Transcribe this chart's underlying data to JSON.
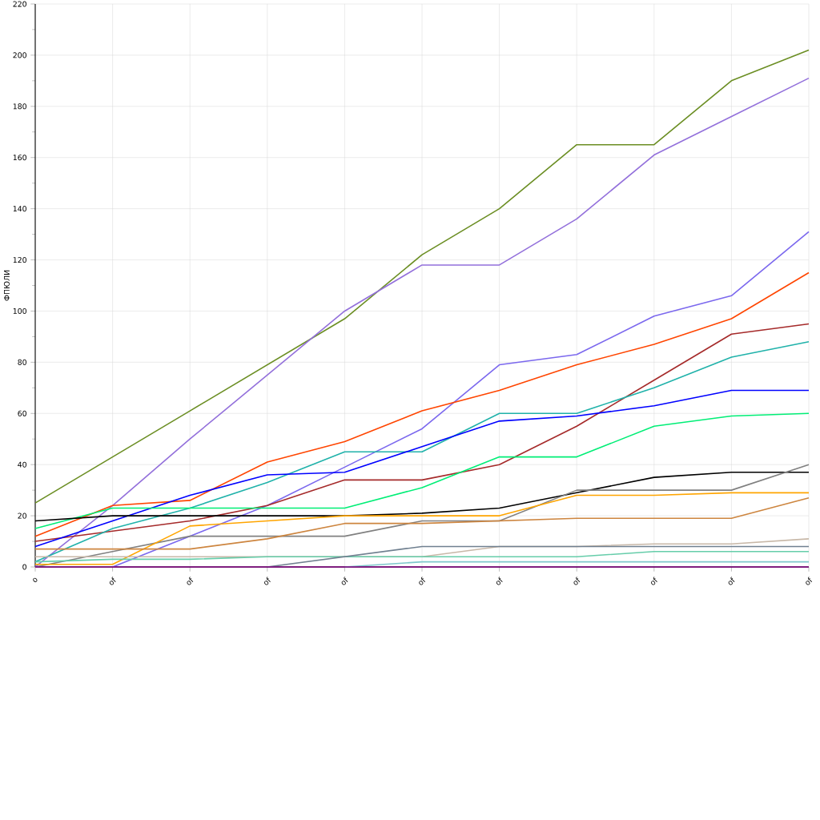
{
  "chart_data": {
    "type": "line",
    "ylabel": "ФПЮЛИ",
    "categories": [
      "o",
      "of",
      "of",
      "of",
      "of",
      "of",
      "of",
      "of",
      "of",
      "of",
      "of"
    ],
    "ylim": [
      0,
      220
    ],
    "yticks": [
      0,
      20,
      40,
      60,
      80,
      100,
      120,
      140,
      160,
      180,
      200,
      220
    ],
    "grid": true,
    "marker": "none",
    "line_style": "solid",
    "series": [
      {
        "color": "#6b8e23",
        "values": [
          25,
          43,
          61,
          79,
          97,
          122,
          140,
          165,
          165,
          190,
          202
        ]
      },
      {
        "color": "#9370db",
        "values": [
          0,
          24,
          50,
          75,
          100,
          118,
          118,
          136,
          161,
          176,
          191
        ]
      },
      {
        "color": "#7b68ee",
        "values": [
          null,
          0,
          12,
          24,
          39,
          54,
          79,
          83,
          98,
          106,
          131
        ]
      },
      {
        "color": "#ff4500",
        "values": [
          12,
          24,
          26,
          41,
          49,
          61,
          69,
          79,
          87,
          97,
          115
        ]
      },
      {
        "color": "#a52a2a",
        "values": [
          10,
          14,
          18,
          24,
          34,
          34,
          40,
          55,
          73,
          91,
          95
        ]
      },
      {
        "color": "#20b2aa",
        "values": [
          2,
          15,
          23,
          33,
          45,
          45,
          60,
          60,
          70,
          82,
          88
        ]
      },
      {
        "color": "#0000ff",
        "values": [
          8,
          18,
          28,
          36,
          37,
          47,
          57,
          59,
          63,
          69,
          69
        ]
      },
      {
        "color": "#00ee76",
        "values": [
          15,
          23,
          23,
          23,
          23,
          31,
          43,
          43,
          55,
          59,
          60
        ]
      },
      {
        "color": "#000000",
        "values": [
          18,
          20,
          20,
          20,
          20,
          21,
          23,
          29,
          35,
          37,
          37
        ]
      },
      {
        "color": "#808080",
        "values": [
          0,
          6,
          12,
          12,
          12,
          18,
          18,
          30,
          30,
          30,
          40
        ]
      },
      {
        "color": "#ffa500",
        "values": [
          1,
          1,
          16,
          18,
          20,
          20,
          20,
          28,
          28,
          29,
          29
        ]
      },
      {
        "color": "#cd853f",
        "values": [
          7,
          7,
          7,
          11,
          17,
          17,
          18,
          19,
          19,
          19,
          27
        ]
      },
      {
        "color": "#c8b8a8",
        "values": [
          4,
          4,
          4,
          4,
          4,
          4,
          8,
          8,
          9,
          9,
          11
        ]
      },
      {
        "color": "#66cdaa",
        "values": [
          2,
          3,
          3,
          4,
          4,
          4,
          4,
          4,
          6,
          6,
          6
        ]
      },
      {
        "color": "#708090",
        "values": [
          null,
          null,
          null,
          0,
          4,
          8,
          8,
          8,
          8,
          8,
          8
        ]
      },
      {
        "color": "#7ec8cc",
        "values": [
          null,
          null,
          null,
          null,
          0,
          2,
          2,
          2,
          2,
          2,
          2
        ]
      },
      {
        "color": "#800080",
        "values": [
          0,
          0,
          0,
          0,
          0,
          0,
          0,
          0,
          0,
          0,
          0
        ]
      }
    ]
  }
}
